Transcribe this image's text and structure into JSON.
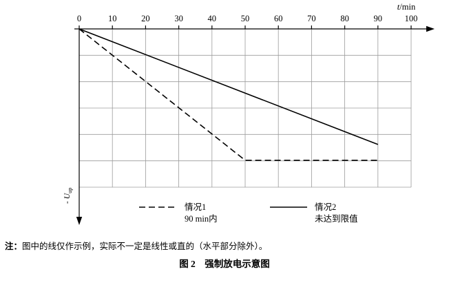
{
  "chart_data": {
    "type": "line",
    "title": "强制放电示意图",
    "x_axis": {
      "label": "t/min",
      "range": [
        0,
        100
      ],
      "ticks": [
        0,
        10,
        20,
        30,
        40,
        50,
        60,
        70,
        80,
        90,
        100
      ]
    },
    "y_axis": {
      "label_main": "- U",
      "label_sub": "up",
      "direction": "down",
      "ticks": []
    },
    "grid": true,
    "grid_rows": 6,
    "legend_position": "bottom-inside",
    "series": [
      {
        "name": "情况1",
        "sublabel": "90 min内",
        "style": "dashed",
        "points": [
          [
            0,
            0
          ],
          [
            50,
            0.83
          ],
          [
            90,
            0.83
          ]
        ]
      },
      {
        "name": "情况2",
        "sublabel": "未达到限值",
        "style": "solid",
        "points": [
          [
            0,
            0
          ],
          [
            90,
            0.73
          ]
        ]
      }
    ]
  },
  "note": {
    "label": "注：",
    "text": "图中的线仅作示例，实际不一定是线性或直的（水平部分除外）。"
  },
  "caption": "图 2　强制放电示意图"
}
